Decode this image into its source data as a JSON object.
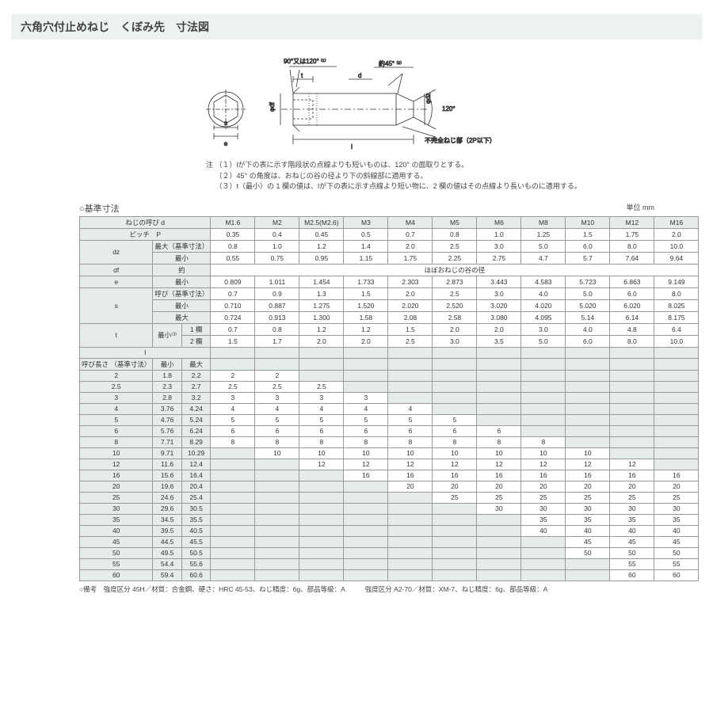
{
  "title": "六角穴付止めねじ　くぼみ先　寸法図",
  "diagram": {
    "a90": "90°又は120° ⁽¹⁾",
    "a45": "約45° ⁽²⁾",
    "a120": "120°",
    "d": "d",
    "t": "t",
    "s": "s",
    "e": "e",
    "phidf": "φdf",
    "phidz": "φdz",
    "l": "l",
    "incomplete": "不完全ねじ部（2P以下）"
  },
  "notes": {
    "prefix": "注",
    "n1": "（１）lが下の表に示す階段状の点線よりも短いものは、120° の面取りとする。",
    "n2": "（２）45° の角度は、おねじの谷の径より下の斜線部に適用する。",
    "n3": "（３）t（最小）の 1 欄の値は、lが下の表に示す点線より短い物に、2 欄の値はその点線より長いものに適用する。"
  },
  "section": "○基準寸法",
  "unit": "単位 mm",
  "cols": [
    "M1.6",
    "M2",
    "M2.5(M2.6)",
    "M3",
    "M4",
    "M5",
    "M6",
    "M8",
    "M10",
    "M12",
    "M16"
  ],
  "row_d": "ねじの呼び d",
  "row_p": {
    "label": "ピッチ　P",
    "v": [
      "0.35",
      "0.4",
      "0.45",
      "0.5",
      "0.7",
      "0.8",
      "1.0",
      "1.25",
      "1.5",
      "1.75",
      "2.0"
    ]
  },
  "row_dz_max": {
    "l1": "dz",
    "l2": "最大（基準寸法）",
    "v": [
      "0.8",
      "1.0",
      "1.2",
      "1.4",
      "2.0",
      "2.5",
      "3.0",
      "5.0",
      "6.0",
      "8.0",
      "10.0"
    ]
  },
  "row_dz_min": {
    "l2": "最小",
    "v": [
      "0.55",
      "0.75",
      "0.95",
      "1.15",
      "1.75",
      "2.25",
      "2.75",
      "4.7",
      "5.7",
      "7.64",
      "9.64"
    ]
  },
  "row_df": {
    "l1": "df",
    "l2": "約",
    "v": "ほぼおねじの谷の径"
  },
  "row_e": {
    "l1": "e",
    "l2": "最小",
    "v": [
      "0.809",
      "1.011",
      "1.454",
      "1.733",
      "2.303",
      "2.873",
      "3.443",
      "4.583",
      "5.723",
      "6.863",
      "9.149"
    ]
  },
  "row_s_nom": {
    "l1": "s",
    "l2": "呼び（基準寸法）",
    "v": [
      "0.7",
      "0.9",
      "1.3",
      "1.5",
      "2.0",
      "2.5",
      "3.0",
      "4.0",
      "5.0",
      "6.0",
      "8.0"
    ]
  },
  "row_s_min": {
    "l2": "最小",
    "v": [
      "0.710",
      "0.887",
      "1.275",
      "1.520",
      "2.020",
      "2.520",
      "3.020",
      "4.020",
      "5.020",
      "6.020",
      "8.025"
    ]
  },
  "row_s_max": {
    "l2": "最大",
    "v": [
      "0.724",
      "0.913",
      "1.300",
      "1.58",
      "2.08",
      "2.58",
      "3.080",
      "4.095",
      "5.14",
      "6.14",
      "8.175"
    ]
  },
  "row_t1": {
    "l1": "t",
    "l2": "最小⁽³⁾",
    "l3": "1 欄",
    "v": [
      "0.7",
      "0.8",
      "1.2",
      "1.2",
      "1.5",
      "2.0",
      "2.0",
      "3.0",
      "4.0",
      "4.8",
      "6.4"
    ]
  },
  "row_t2": {
    "l3": "2 欄",
    "v": [
      "1.5",
      "1.7",
      "2.0",
      "2.0",
      "2.5",
      "3.0",
      "3.5",
      "5.0",
      "6.0",
      "8.0",
      "10.0"
    ]
  },
  "lhdr": {
    "l": "l",
    "nom": "呼び長さ\n（基準寸法）",
    "min": "最小",
    "max": "最大"
  },
  "lrows": [
    {
      "n": "2",
      "mn": "1.8",
      "mx": "2.2",
      "v": [
        "2",
        "2",
        "",
        "",
        "",
        "",
        "",
        "",
        "",
        "",
        ""
      ]
    },
    {
      "n": "2.5",
      "mn": "2.3",
      "mx": "2.7",
      "v": [
        "2.5",
        "2.5",
        "2.5",
        "",
        "",
        "",
        "",
        "",
        "",
        "",
        ""
      ]
    },
    {
      "n": "3",
      "mn": "2.8",
      "mx": "3.2",
      "v": [
        "3",
        "3",
        "3",
        "3",
        "",
        "",
        "",
        "",
        "",
        "",
        ""
      ]
    },
    {
      "n": "4",
      "mn": "3.76",
      "mx": "4.24",
      "v": [
        "4",
        "4",
        "4",
        "4",
        "4",
        "",
        "",
        "",
        "",
        "",
        ""
      ]
    },
    {
      "n": "5",
      "mn": "4.76",
      "mx": "5.24",
      "v": [
        "5",
        "5",
        "5",
        "5",
        "5",
        "5",
        "",
        "",
        "",
        "",
        ""
      ]
    },
    {
      "n": "6",
      "mn": "5.76",
      "mx": "6.24",
      "v": [
        "6",
        "6",
        "6",
        "6",
        "6",
        "6",
        "6",
        "",
        "",
        "",
        ""
      ]
    },
    {
      "n": "8",
      "mn": "7.71",
      "mx": "8.29",
      "v": [
        "8",
        "8",
        "8",
        "8",
        "8",
        "8",
        "8",
        "8",
        "",
        "",
        ""
      ]
    },
    {
      "n": "10",
      "mn": "9.71",
      "mx": "10.29",
      "v": [
        "",
        "10",
        "10",
        "10",
        "10",
        "10",
        "10",
        "10",
        "10",
        "",
        ""
      ]
    },
    {
      "n": "12",
      "mn": "11.6",
      "mx": "12.4",
      "v": [
        "",
        "",
        "12",
        "12",
        "12",
        "12",
        "12",
        "12",
        "12",
        "12",
        ""
      ]
    },
    {
      "n": "16",
      "mn": "15.6",
      "mx": "16.4",
      "v": [
        "",
        "",
        "",
        "16",
        "16",
        "16",
        "16",
        "16",
        "16",
        "16",
        "16"
      ]
    },
    {
      "n": "20",
      "mn": "19.6",
      "mx": "20.4",
      "v": [
        "",
        "",
        "",
        "",
        "20",
        "20",
        "20",
        "20",
        "20",
        "20",
        "20"
      ]
    },
    {
      "n": "25",
      "mn": "24.6",
      "mx": "25.4",
      "v": [
        "",
        "",
        "",
        "",
        "",
        "25",
        "25",
        "25",
        "25",
        "25",
        "25"
      ]
    },
    {
      "n": "30",
      "mn": "29.6",
      "mx": "30.5",
      "v": [
        "",
        "",
        "",
        "",
        "",
        "",
        "30",
        "30",
        "30",
        "30",
        "30"
      ]
    },
    {
      "n": "35",
      "mn": "34.5",
      "mx": "35.5",
      "v": [
        "",
        "",
        "",
        "",
        "",
        "",
        "",
        "35",
        "35",
        "35",
        "35"
      ]
    },
    {
      "n": "40",
      "mn": "39.5",
      "mx": "40.5",
      "v": [
        "",
        "",
        "",
        "",
        "",
        "",
        "",
        "40",
        "40",
        "40",
        "40"
      ]
    },
    {
      "n": "45",
      "mn": "44.5",
      "mx": "45.5",
      "v": [
        "",
        "",
        "",
        "",
        "",
        "",
        "",
        "",
        "45",
        "45",
        "45"
      ]
    },
    {
      "n": "50",
      "mn": "49.5",
      "mx": "50.5",
      "v": [
        "",
        "",
        "",
        "",
        "",
        "",
        "",
        "",
        "50",
        "50",
        "50"
      ]
    },
    {
      "n": "55",
      "mn": "54.4",
      "mx": "55.6",
      "v": [
        "",
        "",
        "",
        "",
        "",
        "",
        "",
        "",
        "",
        "55",
        "55"
      ]
    },
    {
      "n": "60",
      "mn": "59.4",
      "mx": "60.6",
      "v": [
        "",
        "",
        "",
        "",
        "",
        "",
        "",
        "",
        "",
        "60",
        "60"
      ]
    }
  ],
  "remark": "○備考　強度区分 45H／材質：合金鋼、硬さ：HRC 45-53、ねじ精度：6g、部品等級：A　　　強度区分 A2-70／材質：XM-7、ねじ精度：6g、部品等級：A"
}
